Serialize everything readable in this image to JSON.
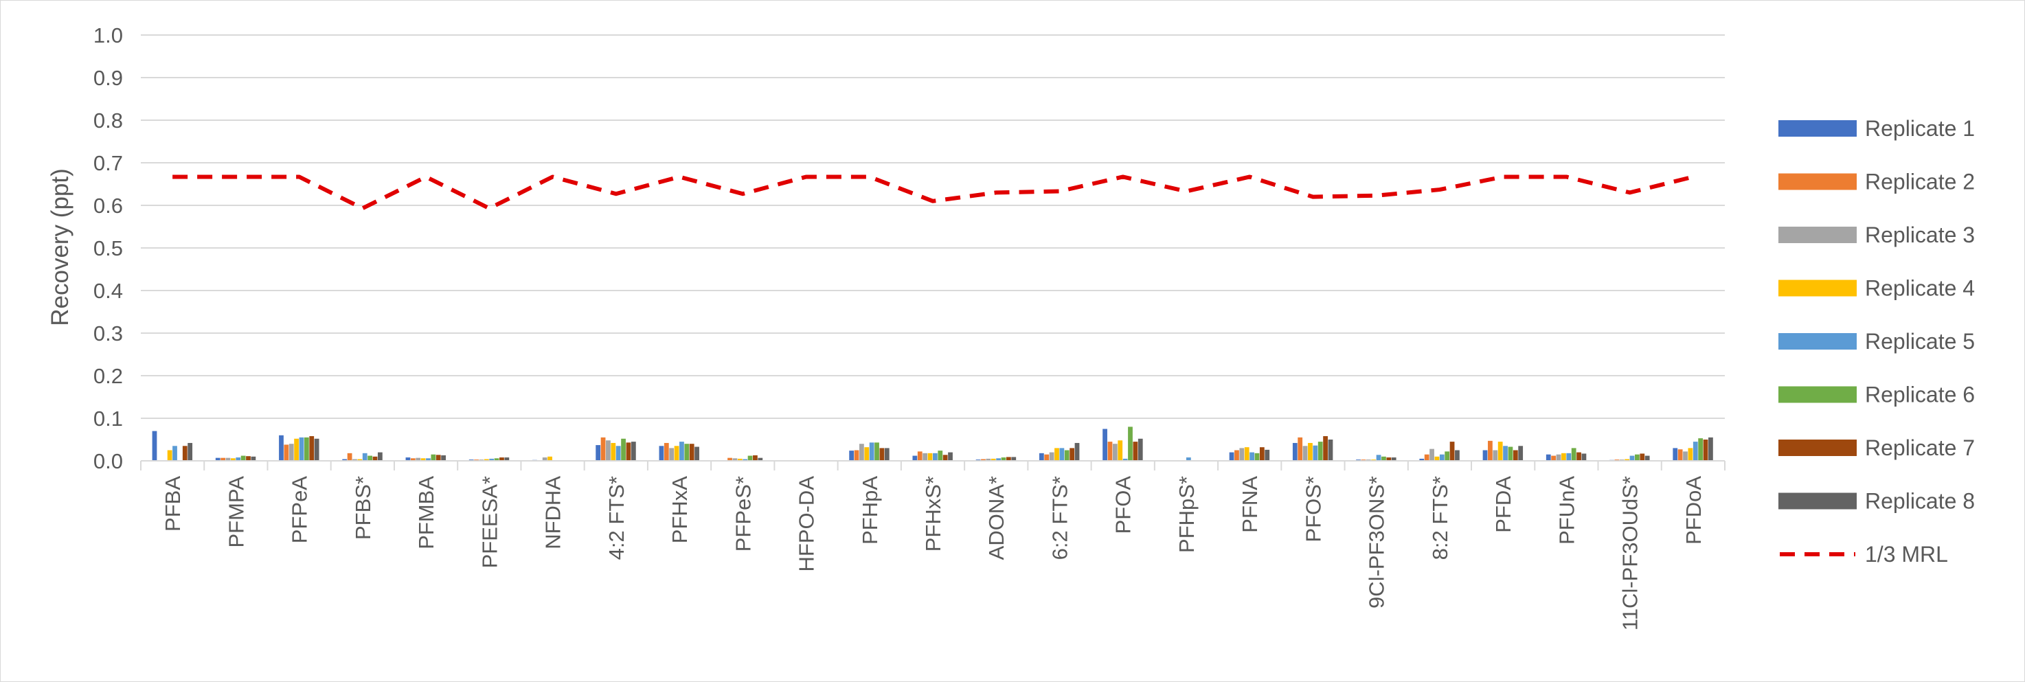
{
  "chart_data": {
    "type": "bar",
    "title": "",
    "xlabel": "",
    "ylabel": "Recovery (ppt)",
    "ylim": [
      0,
      1.0
    ],
    "yticks": [
      "0.0",
      "0.1",
      "0.2",
      "0.3",
      "0.4",
      "0.5",
      "0.6",
      "0.7",
      "0.8",
      "0.9",
      "1.0"
    ],
    "grid": "horizontal",
    "legend_position": "right",
    "categories": [
      "PFBA",
      "PFMPA",
      "PFPeA",
      "PFBS*",
      "PFMBA",
      "PFEESA*",
      "NFDHA",
      "4:2 FTS*",
      "PFHxA",
      "PFPeS*",
      "HFPO-DA",
      "PFHpA",
      "PFHxS*",
      "ADONA*",
      "6:2 FTS*",
      "PFOA",
      "PFHpS*",
      "PFNA",
      "PFOS*",
      "9Cl-PF3ONS*",
      "8:2 FTS*",
      "PFDA",
      "PFUnA",
      "11Cl-PF3OUdS*",
      "PFDoA"
    ],
    "series": [
      {
        "name": "Replicate 1",
        "color": "#4472C4",
        "values": [
          0.07,
          0.007,
          0.06,
          0.004,
          0.008,
          0.003,
          0.002,
          0.037,
          0.035,
          0.0,
          0.0,
          0.024,
          0.012,
          0.003,
          0.018,
          0.075,
          0.0,
          0.02,
          0.042,
          0.003,
          0.005,
          0.025,
          0.015,
          0.002,
          0.03
        ]
      },
      {
        "name": "Replicate 2",
        "color": "#ED7D31",
        "values": [
          0.0,
          0.007,
          0.038,
          0.018,
          0.006,
          0.003,
          0.0,
          0.055,
          0.042,
          0.007,
          0.0,
          0.025,
          0.022,
          0.004,
          0.015,
          0.045,
          0.0,
          0.025,
          0.055,
          0.003,
          0.015,
          0.047,
          0.012,
          0.003,
          0.027
        ]
      },
      {
        "name": "Replicate 3",
        "color": "#A5A5A5",
        "values": [
          0.0,
          0.007,
          0.04,
          0.004,
          0.007,
          0.003,
          0.008,
          0.048,
          0.03,
          0.006,
          0.0,
          0.04,
          0.018,
          0.005,
          0.02,
          0.04,
          0.0,
          0.03,
          0.035,
          0.003,
          0.028,
          0.025,
          0.015,
          0.003,
          0.022
        ]
      },
      {
        "name": "Replicate 4",
        "color": "#FFC000",
        "values": [
          0.025,
          0.006,
          0.052,
          0.004,
          0.006,
          0.004,
          0.01,
          0.042,
          0.035,
          0.005,
          0.0,
          0.032,
          0.018,
          0.005,
          0.03,
          0.048,
          0.0,
          0.032,
          0.042,
          0.003,
          0.01,
          0.045,
          0.018,
          0.004,
          0.03
        ]
      },
      {
        "name": "Replicate 5",
        "color": "#5B9BD5",
        "values": [
          0.035,
          0.008,
          0.055,
          0.018,
          0.006,
          0.005,
          0.0,
          0.035,
          0.045,
          0.004,
          0.0,
          0.043,
          0.018,
          0.006,
          0.03,
          0.005,
          0.008,
          0.02,
          0.036,
          0.014,
          0.015,
          0.035,
          0.018,
          0.012,
          0.045
        ]
      },
      {
        "name": "Replicate 6",
        "color": "#70AD47",
        "values": [
          0.0,
          0.012,
          0.055,
          0.012,
          0.015,
          0.006,
          0.0,
          0.052,
          0.04,
          0.012,
          0.0,
          0.043,
          0.024,
          0.008,
          0.025,
          0.08,
          0.0,
          0.018,
          0.045,
          0.01,
          0.022,
          0.033,
          0.03,
          0.015,
          0.053
        ]
      },
      {
        "name": "Replicate 7",
        "color": "#9E480E",
        "values": [
          0.035,
          0.011,
          0.058,
          0.01,
          0.014,
          0.008,
          0.0,
          0.043,
          0.04,
          0.013,
          0.0,
          0.03,
          0.014,
          0.009,
          0.03,
          0.045,
          0.0,
          0.032,
          0.058,
          0.008,
          0.045,
          0.025,
          0.02,
          0.017,
          0.05
        ]
      },
      {
        "name": "Replicate 8",
        "color": "#636363",
        "values": [
          0.042,
          0.01,
          0.052,
          0.02,
          0.013,
          0.008,
          0.0,
          0.045,
          0.033,
          0.007,
          0.0,
          0.03,
          0.02,
          0.009,
          0.042,
          0.052,
          0.0,
          0.026,
          0.05,
          0.008,
          0.025,
          0.035,
          0.017,
          0.012,
          0.055
        ]
      }
    ],
    "line_series": {
      "name": "1/3 MRL",
      "color": "#E00000",
      "style": "dashed",
      "values": [
        0.667,
        0.667,
        0.667,
        0.593,
        0.667,
        0.593,
        0.667,
        0.627,
        0.667,
        0.627,
        0.667,
        0.667,
        0.61,
        0.63,
        0.633,
        0.667,
        0.633,
        0.667,
        0.62,
        0.623,
        0.637,
        0.667,
        0.667,
        0.63,
        0.667
      ]
    }
  }
}
